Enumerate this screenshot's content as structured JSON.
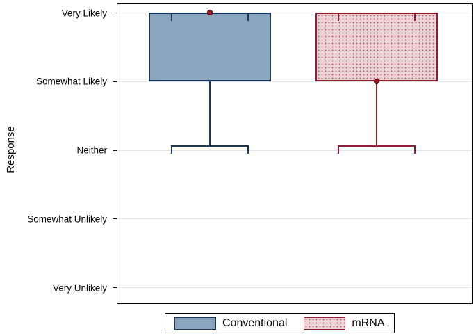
{
  "chart_data": {
    "type": "box",
    "orientation": "vertical",
    "title": "",
    "ylabel": "Response",
    "y_categories": [
      "Very Likely",
      "Somewhat Likely",
      "Neither",
      "Somewhat Unlikely",
      "Very Unlikely"
    ],
    "grid": true,
    "legend_position": "bottom",
    "series": [
      {
        "name": "Conventional",
        "box_top": "Very Likely",
        "box_bottom": "Somewhat Likely",
        "whisker_high": "Very Likely",
        "whisker_low": "Neither",
        "marker_value": "Very Likely",
        "fill": "#8ba3bb",
        "pattern": "solid",
        "border": "#17375c"
      },
      {
        "name": "mRNA",
        "box_top": "Very Likely",
        "box_bottom": "Somewhat Likely",
        "whisker_high": "Very Likely",
        "whisker_low": "Neither",
        "marker_value": "Somewhat Likely",
        "fill": "#ecd3d6",
        "pattern": "dots",
        "dot_color": "#b06670",
        "border": "#8e1f33"
      }
    ],
    "marker": {
      "shape": "circle",
      "fill": "#a50d1d",
      "stroke": "#4d000a"
    }
  },
  "legend": {
    "items": [
      {
        "label": "Conventional",
        "swatch": "conventional"
      },
      {
        "label": "mRNA",
        "swatch": "mrna"
      }
    ]
  }
}
